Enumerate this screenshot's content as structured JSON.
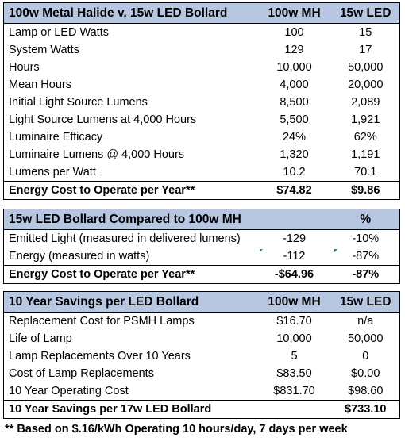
{
  "table1": {
    "header": [
      "100w Metal Halide v. 15w LED Bollard",
      "100w MH",
      "15w LED"
    ],
    "rows": [
      [
        "Lamp or LED Watts",
        "100",
        "15"
      ],
      [
        "System Watts",
        "129",
        "17"
      ],
      [
        "Hours",
        "10,000",
        "50,000"
      ],
      [
        "Mean Hours",
        "4,000",
        "20,000"
      ],
      [
        "Initial Light Source Lumens",
        "8,500",
        "2,089"
      ],
      [
        "Light Source Lumens at 4,000 Hours",
        "5,500",
        "1,921"
      ],
      [
        "Luminaire Efficacy",
        "24%",
        "62%"
      ],
      [
        "Luminaire Lumens @ 4,000 Hours",
        "1,320",
        "1,191"
      ],
      [
        "Lumens per Watt",
        "10.2",
        "70.1"
      ]
    ],
    "total": [
      "Energy Cost to Operate per Year**",
      "$74.82",
      "$9.86"
    ]
  },
  "table2": {
    "header": [
      "15w LED Bollard Compared to 100w MH",
      "",
      "%"
    ],
    "rows": [
      [
        "Emitted Light (measured in delivered lumens)",
        "-129",
        "-10%"
      ],
      [
        "Energy (measured in watts)",
        "-112",
        "-87%"
      ]
    ],
    "total": [
      "Energy Cost to Operate per Year**",
      "-$64.96",
      "-87%"
    ]
  },
  "table3": {
    "header": [
      "10 Year Savings per LED Bollard",
      "100w MH",
      "15w LED"
    ],
    "rows": [
      [
        "Replacement Cost for PSMH Lamps",
        "$16.70",
        "n/a"
      ],
      [
        "Life of Lamp",
        "10,000",
        "50,000"
      ],
      [
        "Lamp Replacements Over 10 Years",
        "5",
        "0"
      ],
      [
        "Cost of Lamp Replacements",
        "$83.50",
        "$0.00"
      ],
      [
        "10 Year Operating Cost",
        "$831.70",
        "$98.60"
      ]
    ],
    "total": [
      "10 Year Savings per 17w LED Bollard",
      "",
      "$733.10"
    ]
  },
  "footnote": "** Based on $.16/kWh Operating 10 hours/day, 7 days per week",
  "colors": {
    "header_bg": "#b7c7e2",
    "border": "#000000",
    "comment_marker": "#2e8b3e"
  }
}
